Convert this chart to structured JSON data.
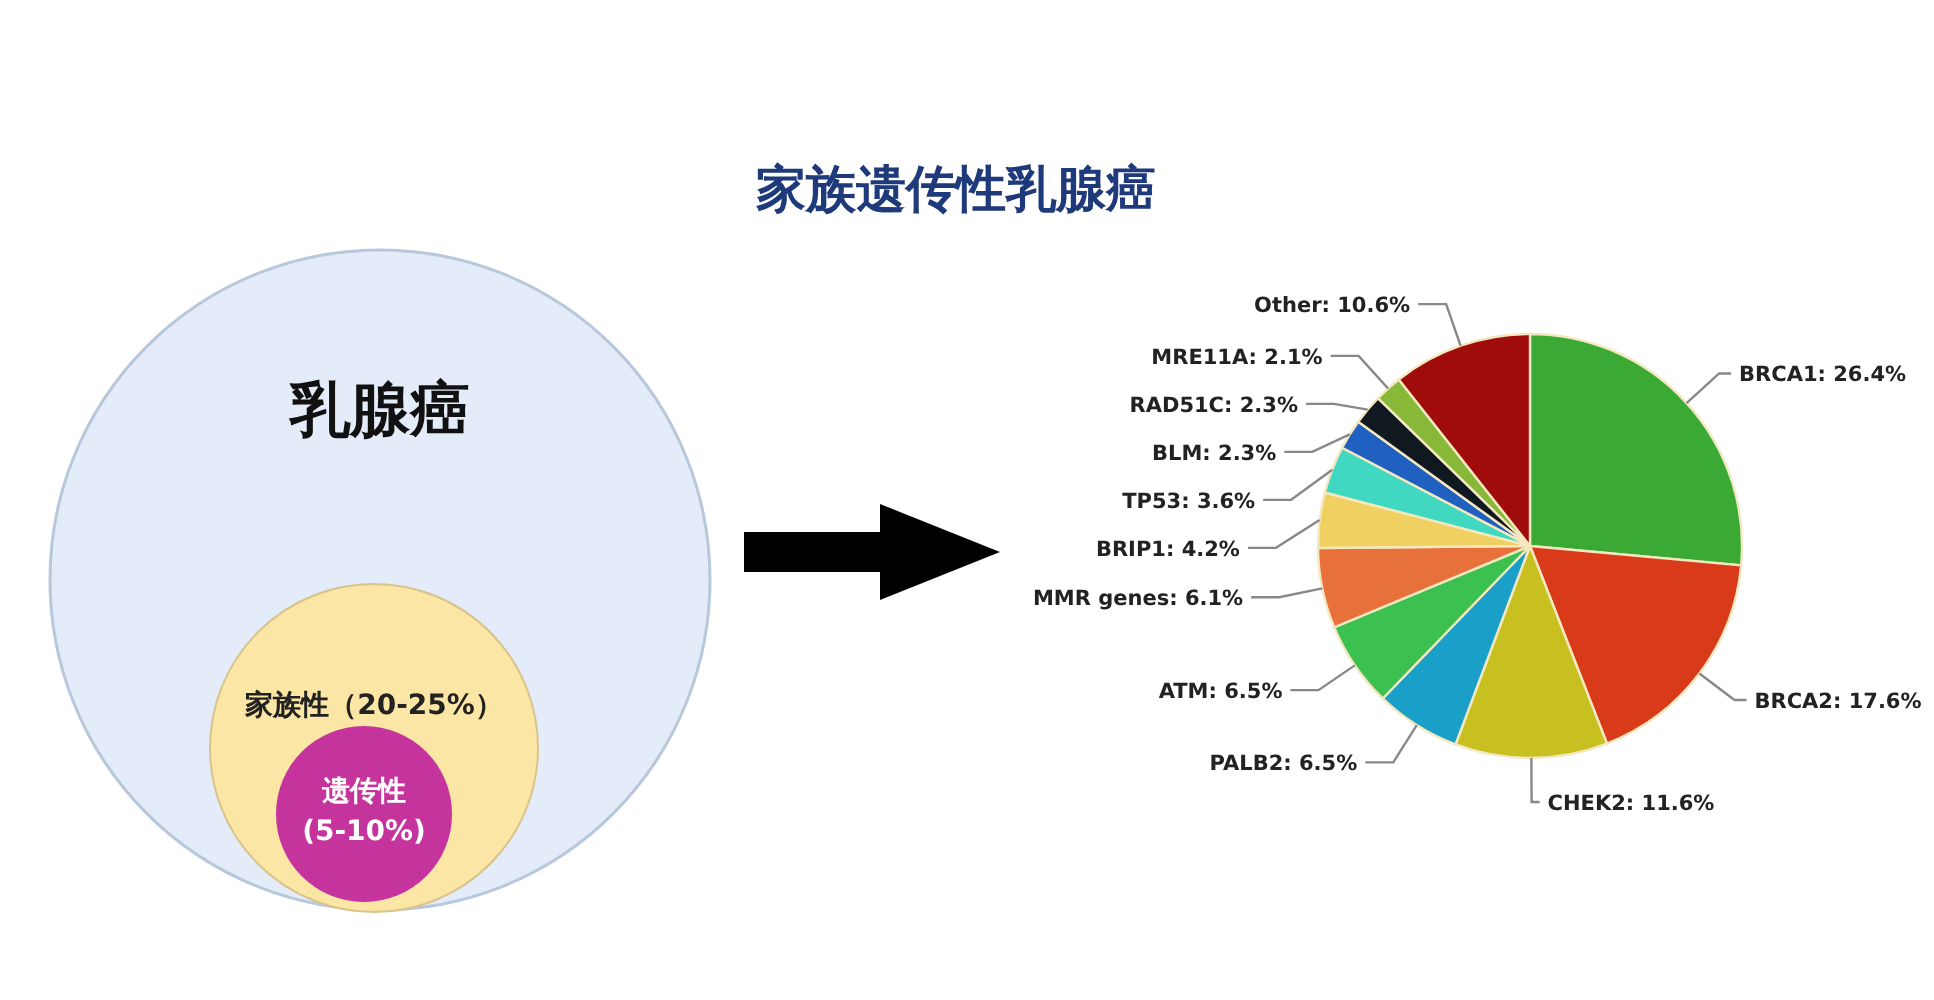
{
  "chart_data": [
    {
      "type": "other",
      "annotations": [
        "乳腺癌",
        "家族性（20-25%）",
        "遗传性",
        "(5-10%)"
      ]
    },
    {
      "type": "pie",
      "title": "家族遗传性乳腺癌",
      "categories": [
        "BRCA1",
        "BRCA2",
        "CHEK2",
        "PALB2",
        "ATM",
        "MMR genes",
        "BRIP1",
        "TP53",
        "BLM",
        "RAD51C",
        "MRE11A",
        "Other"
      ],
      "values": [
        26.4,
        17.6,
        11.6,
        6.5,
        6.5,
        6.1,
        4.2,
        3.6,
        2.3,
        2.3,
        2.1,
        10.6
      ],
      "value_labels": [
        "26.4%",
        "17.6%",
        "11.6%",
        "6.5%",
        "6.5%",
        "6.1%",
        "4.2%",
        "3.6%",
        "2.3%",
        "2.3%",
        "2.1%",
        "10.6%"
      ],
      "colors": [
        "#3aaa35",
        "#d83a1a",
        "#c8c020",
        "#1aa0c8",
        "#3cc050",
        "#e8703a",
        "#f0d060",
        "#40d8c0",
        "#2060c0",
        "#101820",
        "#88b838",
        "#a00c0c"
      ]
    }
  ]
}
